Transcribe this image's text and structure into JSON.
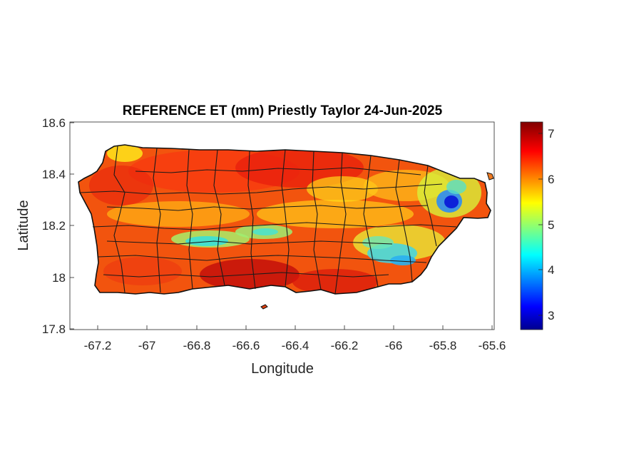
{
  "title": "REFERENCE ET (mm) Priestly Taylor 24-Jun-2025",
  "xlabel": "Longitude",
  "ylabel": "Latitude",
  "x_ticks": [
    "-67.2",
    "-67",
    "-66.8",
    "-66.6",
    "-66.4",
    "-66.2",
    "-66",
    "-65.8",
    "-65.6"
  ],
  "y_ticks": [
    "18.6",
    "18.4",
    "18.2",
    "18",
    "17.8"
  ],
  "colorbar_ticks": [
    "7",
    "6",
    "5",
    "4",
    "3"
  ],
  "chart_data": {
    "type": "heatmap",
    "title": "REFERENCE ET (mm) Priestly Taylor 24-Jun-2025",
    "xlabel": "Longitude",
    "ylabel": "Latitude",
    "xlim": [
      -67.3,
      -65.59
    ],
    "ylim": [
      17.8,
      18.6
    ],
    "x_ticks": [
      -67.2,
      -67,
      -66.8,
      -66.6,
      -66.4,
      -66.2,
      -66,
      -65.8,
      -65.6
    ],
    "y_ticks": [
      18.6,
      18.4,
      18.2,
      18.0,
      17.8
    ],
    "colorbar": {
      "range": [
        2.7,
        7.3
      ],
      "ticks": [
        3,
        4,
        5,
        6,
        7
      ],
      "colormap": "jet",
      "location": "right"
    },
    "features": [
      {
        "kind": "low",
        "lon": -65.78,
        "lat": 18.29,
        "value": 3.2
      },
      {
        "kind": "low",
        "lon": -66.05,
        "lat": 18.12,
        "value": 4.5
      },
      {
        "kind": "low",
        "lon": -66.75,
        "lat": 18.14,
        "value": 4.6
      },
      {
        "kind": "low",
        "lon": -66.5,
        "lat": 18.17,
        "value": 5.0
      },
      {
        "kind": "high",
        "lon": -66.55,
        "lat": 18.0,
        "value": 7.1
      },
      {
        "kind": "high",
        "lon": -66.4,
        "lat": 18.45,
        "value": 6.9
      }
    ]
  }
}
